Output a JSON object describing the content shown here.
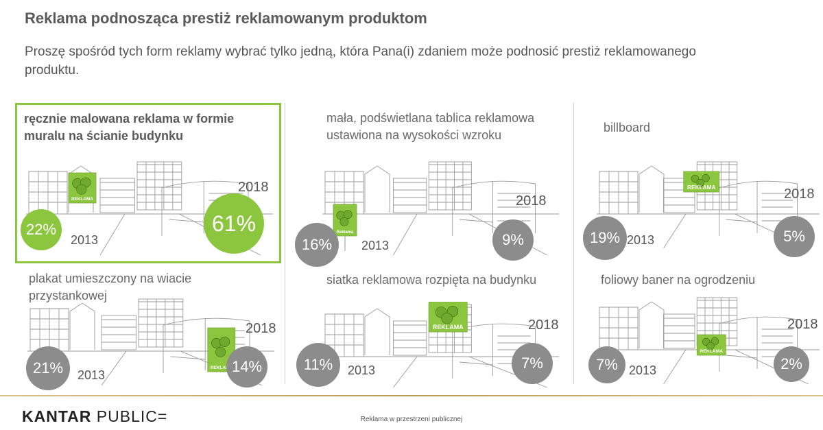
{
  "header": {
    "title": "Reklama podnosząca prestiż reklamowanym produktom",
    "subtitle": "Proszę spośród tych form reklamy wybrać tylko jedną, która Pana(i) zdaniem może podnosić prestiż reklamowanego produktu."
  },
  "chart_data": {
    "type": "bubble-comparison",
    "title": "Reklama podnosząca prestiż reklamowanym produktom",
    "series_names": [
      "2013",
      "2018"
    ],
    "unit": "%",
    "categories": [
      {
        "label": "ręcznie malowana reklama w formie muralu na ścianie budynku",
        "v2013": 22,
        "v2018": 61,
        "highlighted": true
      },
      {
        "label": "mała, podświetlana tablica reklamowa ustawiona na wysokości wzroku",
        "v2013": 16,
        "v2018": 9,
        "highlighted": false
      },
      {
        "label": "billboard",
        "v2013": 19,
        "v2018": 5,
        "highlighted": false
      },
      {
        "label": "plakat umieszczony na wiacie przystankowej",
        "v2013": 21,
        "v2018": 14,
        "highlighted": false
      },
      {
        "label": "siatka reklamowa rozpięta na budynku",
        "v2013": 11,
        "v2018": 7,
        "highlighted": false
      },
      {
        "label": "foliowy baner na ogrodzeniu",
        "v2013": 7,
        "v2018": 2,
        "highlighted": false
      }
    ]
  },
  "panels": [
    {
      "label": "ręcznie malowana reklama w formie muralu na ścianie budynku",
      "v2013": "22%",
      "v2018": "61%",
      "year2013": "2013",
      "year2018": "2018",
      "sign": "REKLAMA"
    },
    {
      "label": "mała, podświetlana tablica reklamowa ustawiona na wysokości wzroku",
      "v2013": "16%",
      "v2018": "9%",
      "year2013": "2013",
      "year2018": "2018",
      "sign": "Reklama"
    },
    {
      "label": "billboard",
      "v2013": "19%",
      "v2018": "5%",
      "year2013": "2013",
      "year2018": "2018",
      "sign": "REKLAMA"
    },
    {
      "label": "plakat umieszczony na wiacie przystankowej",
      "v2013": "21%",
      "v2018": "14%",
      "year2013": "2013",
      "year2018": "2018",
      "sign": "REKLAMA"
    },
    {
      "label": "siatka reklamowa rozpięta na budynku",
      "v2013": "11%",
      "v2018": "7%",
      "year2013": "2013",
      "year2018": "2018",
      "sign": "REKLAMA"
    },
    {
      "label": "foliowy baner na ogrodzeniu",
      "v2013": "7%",
      "v2018": "2%",
      "year2013": "2013",
      "year2018": "2018",
      "sign": "REKLAMA"
    }
  ],
  "footer": {
    "logo_bold": "KANTAR",
    "logo_light": "PUBLIC=",
    "caption": "Reklama w przestrzeni publicznej"
  },
  "colors": {
    "accent": "#8cc63f",
    "bubble_grey": "#8c8c8c",
    "divider": "#cccccc",
    "footer_gold": "#b89b52"
  }
}
